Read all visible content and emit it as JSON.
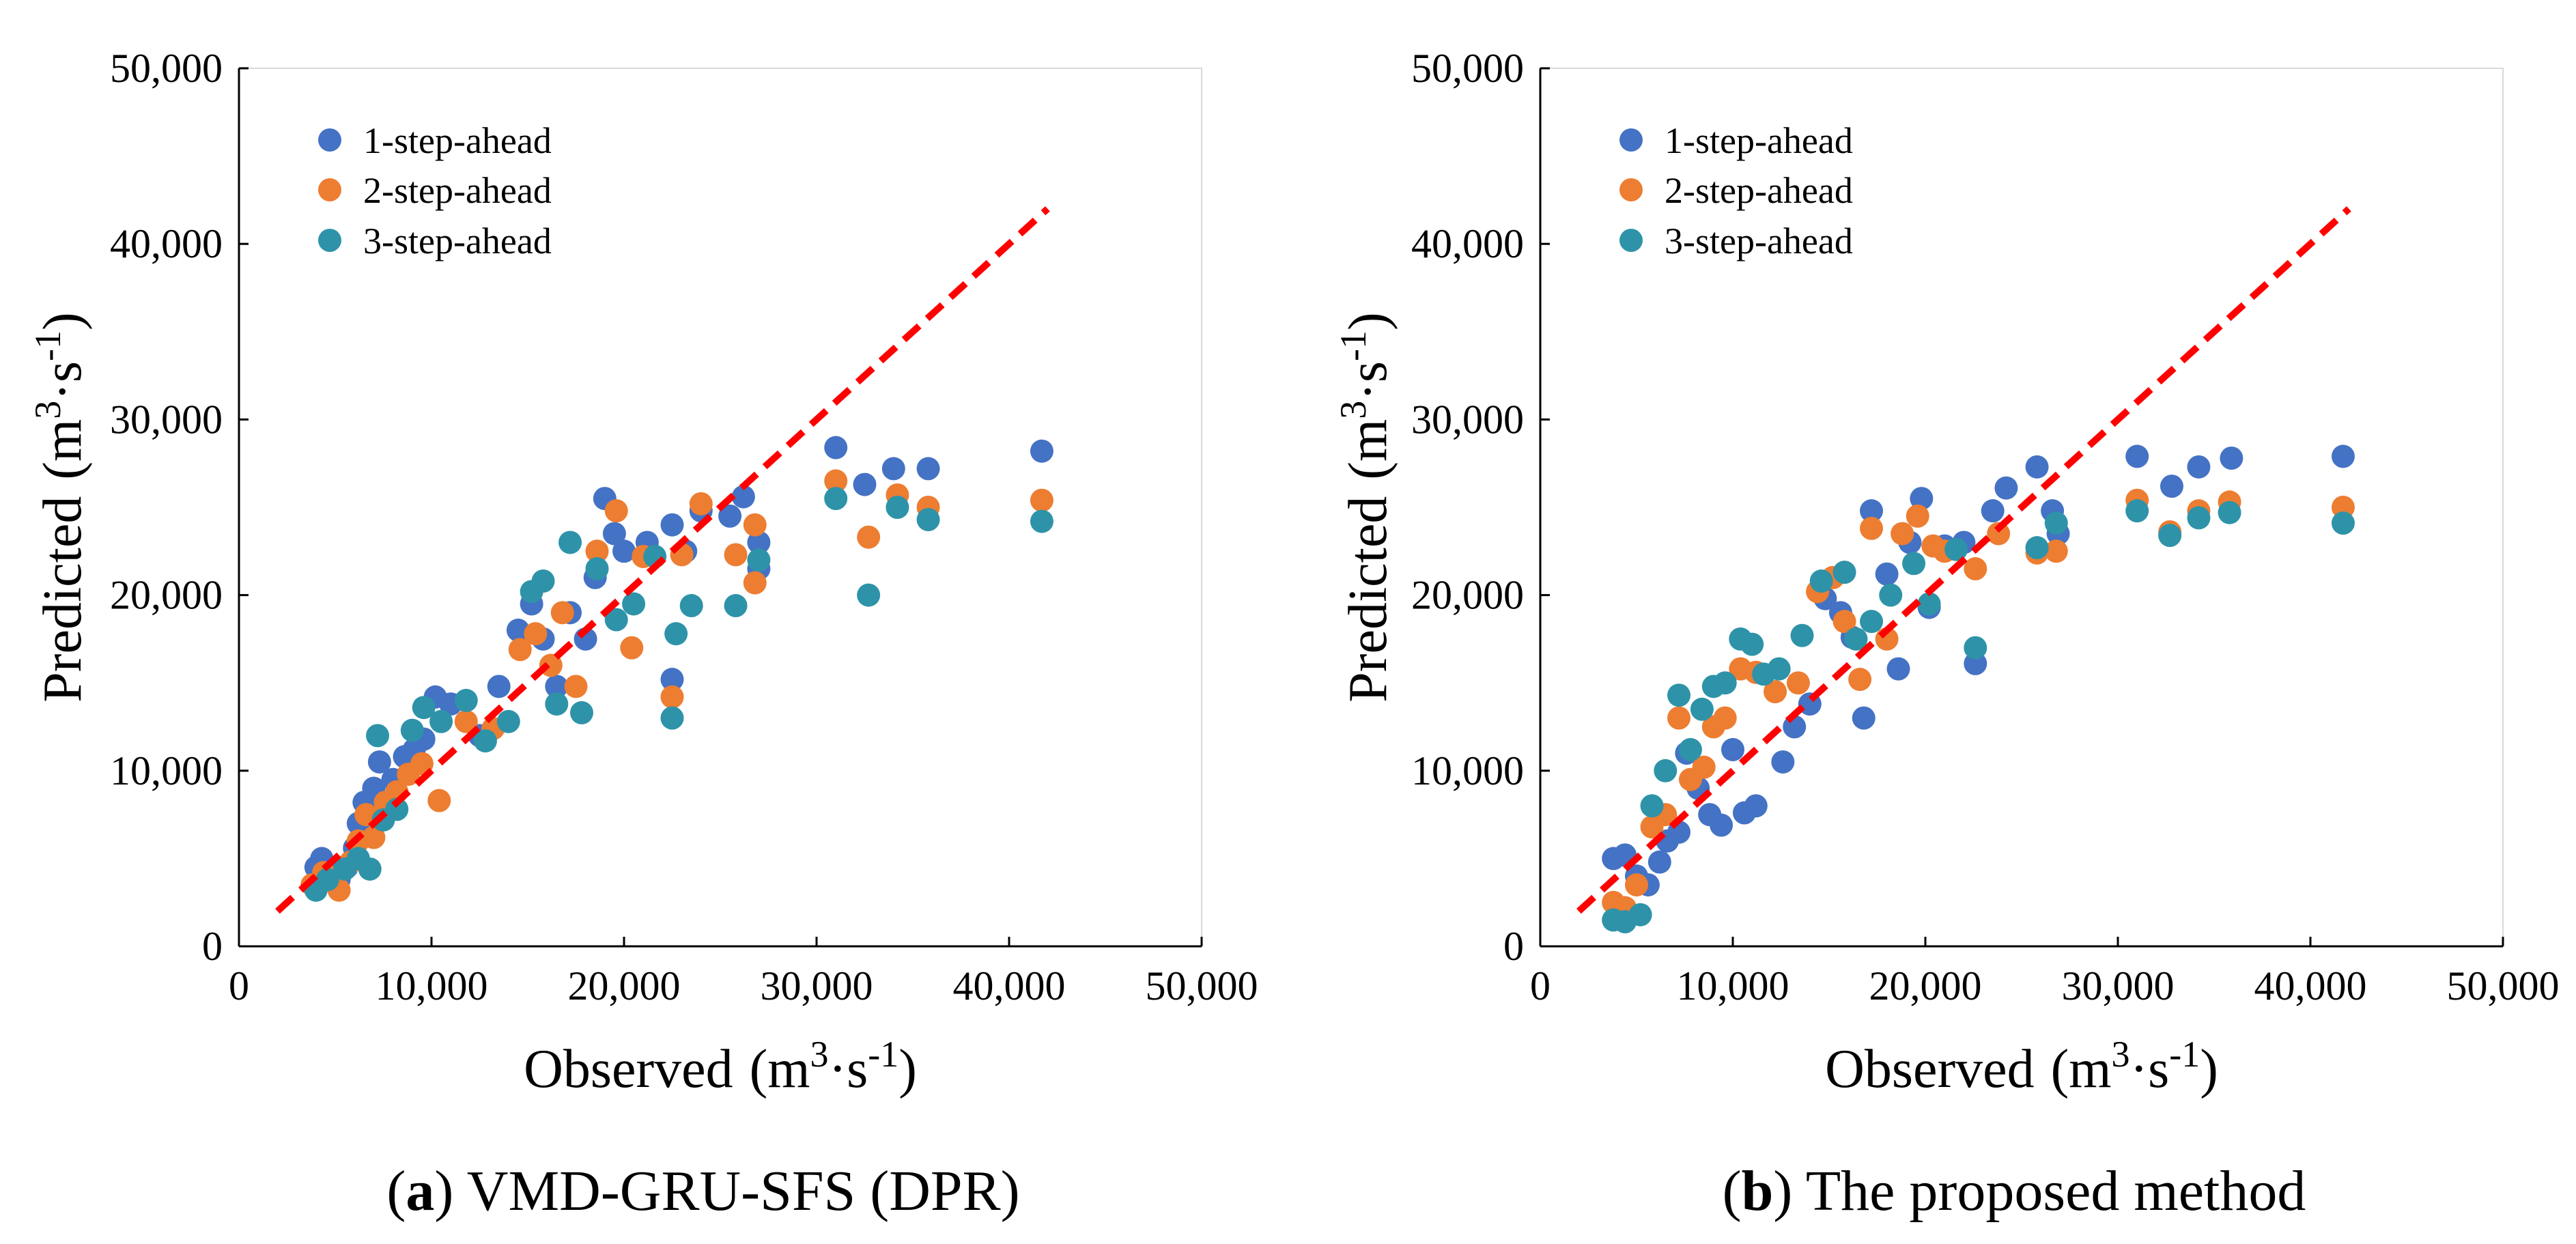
{
  "figure": {
    "marker_colors": {
      "1-step-ahead": "#4472C4",
      "2-step-ahead": "#ED7D31",
      "3-step-ahead": "#2E93A8"
    },
    "identity_line_color": "#FF0000"
  },
  "chart_data": [
    {
      "type": "scatter",
      "panel": "a",
      "caption_label": "a",
      "caption_text": " VMD-GRU-SFS (DPR)",
      "xlabel_text": "Observed",
      "ylabel_text": "Predicted",
      "unit_base": "m",
      "unit_sup1": "3",
      "unit_mid": "·s",
      "unit_sup2": "-1",
      "xlim": [
        0,
        50000
      ],
      "ylim": [
        0,
        50000
      ],
      "xticks": [
        0,
        10000,
        20000,
        30000,
        40000,
        50000
      ],
      "yticks": [
        0,
        10000,
        20000,
        30000,
        40000,
        50000
      ],
      "xtick_labels": [
        "0",
        "10,000",
        "20,000",
        "30,000",
        "40,000",
        "50,000"
      ],
      "ytick_labels": [
        "0",
        "10,000",
        "20,000",
        "30,000",
        "40,000",
        "50,000"
      ],
      "legend_position": "top-left",
      "reference_line": {
        "x": [
          2000,
          42000
        ],
        "y": [
          2000,
          42000
        ],
        "style": "dashed"
      },
      "series": [
        {
          "name": "1-step-ahead",
          "points": [
            [
              4000,
              4500
            ],
            [
              4300,
              5000
            ],
            [
              4800,
              4200
            ],
            [
              5200,
              3800
            ],
            [
              5600,
              4500
            ],
            [
              6000,
              5600
            ],
            [
              6200,
              7000
            ],
            [
              6500,
              8200
            ],
            [
              7000,
              9000
            ],
            [
              7300,
              10500
            ],
            [
              8000,
              9500
            ],
            [
              8600,
              10800
            ],
            [
              9100,
              11200
            ],
            [
              9600,
              11800
            ],
            [
              10200,
              14200
            ],
            [
              11000,
              13800
            ],
            [
              12500,
              12000
            ],
            [
              13500,
              14800
            ],
            [
              14500,
              18000
            ],
            [
              15200,
              19500
            ],
            [
              15800,
              17500
            ],
            [
              16500,
              14800
            ],
            [
              17200,
              19000
            ],
            [
              18000,
              17500
            ],
            [
              18500,
              21000
            ],
            [
              19000,
              25500
            ],
            [
              19500,
              23500
            ],
            [
              20000,
              22500
            ],
            [
              21200,
              23000
            ],
            [
              22500,
              24000
            ],
            [
              23200,
              22500
            ],
            [
              24000,
              24800
            ],
            [
              25500,
              24500
            ],
            [
              26200,
              25600
            ],
            [
              27000,
              23000
            ],
            [
              27000,
              21500
            ],
            [
              22500,
              15200
            ],
            [
              31000,
              28400
            ],
            [
              32500,
              26300
            ],
            [
              34000,
              27200
            ],
            [
              35800,
              27200
            ],
            [
              41700,
              28200
            ]
          ]
        },
        {
          "name": "2-step-ahead",
          "points": [
            [
              3800,
              3500
            ],
            [
              4400,
              4200
            ],
            [
              5200,
              3200
            ],
            [
              5800,
              4800
            ],
            [
              6200,
              6000
            ],
            [
              6600,
              7500
            ],
            [
              7000,
              6200
            ],
            [
              7600,
              8200
            ],
            [
              8200,
              8800
            ],
            [
              8800,
              9800
            ],
            [
              9500,
              10400
            ],
            [
              10400,
              8300
            ],
            [
              11800,
              12800
            ],
            [
              13200,
              12400
            ],
            [
              14600,
              16900
            ],
            [
              15400,
              17800
            ],
            [
              16200,
              16000
            ],
            [
              16800,
              19000
            ],
            [
              17500,
              14800
            ],
            [
              18600,
              22500
            ],
            [
              19600,
              24800
            ],
            [
              20400,
              17000
            ],
            [
              21000,
              22200
            ],
            [
              22500,
              14200
            ],
            [
              23000,
              22300
            ],
            [
              24000,
              25200
            ],
            [
              25800,
              22300
            ],
            [
              26800,
              20700
            ],
            [
              26800,
              24000
            ],
            [
              31000,
              26500
            ],
            [
              32700,
              23300
            ],
            [
              34200,
              25700
            ],
            [
              35800,
              25000
            ],
            [
              41700,
              25400
            ]
          ]
        },
        {
          "name": "3-step-ahead",
          "points": [
            [
              4000,
              3200
            ],
            [
              4600,
              3800
            ],
            [
              5500,
              4400
            ],
            [
              6200,
              5000
            ],
            [
              6800,
              4400
            ],
            [
              7200,
              12000
            ],
            [
              7500,
              7200
            ],
            [
              8200,
              7800
            ],
            [
              9000,
              12300
            ],
            [
              9600,
              13600
            ],
            [
              10500,
              12800
            ],
            [
              11800,
              14000
            ],
            [
              12800,
              11700
            ],
            [
              14000,
              12800
            ],
            [
              15200,
              20200
            ],
            [
              15800,
              20800
            ],
            [
              16500,
              13800
            ],
            [
              17200,
              23000
            ],
            [
              17800,
              13300
            ],
            [
              18600,
              21500
            ],
            [
              19600,
              18600
            ],
            [
              20500,
              19500
            ],
            [
              21600,
              22200
            ],
            [
              22500,
              13000
            ],
            [
              22700,
              17800
            ],
            [
              23500,
              19400
            ],
            [
              25800,
              19400
            ],
            [
              27000,
              22000
            ],
            [
              31000,
              25500
            ],
            [
              32700,
              20000
            ],
            [
              34200,
              25000
            ],
            [
              35800,
              24300
            ],
            [
              41700,
              24200
            ]
          ]
        }
      ]
    },
    {
      "type": "scatter",
      "panel": "b",
      "caption_label": "b",
      "caption_text": " The proposed method",
      "xlabel_text": "Observed",
      "ylabel_text": "Predicted",
      "unit_base": "m",
      "unit_sup1": "3",
      "unit_mid": "·s",
      "unit_sup2": "-1",
      "xlim": [
        0,
        50000
      ],
      "ylim": [
        0,
        50000
      ],
      "xticks": [
        0,
        10000,
        20000,
        30000,
        40000,
        50000
      ],
      "yticks": [
        0,
        10000,
        20000,
        30000,
        40000,
        50000
      ],
      "xtick_labels": [
        "0",
        "10,000",
        "20,000",
        "30,000",
        "40,000",
        "50,000"
      ],
      "ytick_labels": [
        "0",
        "10,000",
        "20,000",
        "30,000",
        "40,000",
        "50,000"
      ],
      "legend_position": "top-left",
      "reference_line": {
        "x": [
          2000,
          42000
        ],
        "y": [
          2000,
          42000
        ],
        "style": "dashed"
      },
      "series": [
        {
          "name": "1-step-ahead",
          "points": [
            [
              3800,
              5000
            ],
            [
              4400,
              5200
            ],
            [
              5000,
              4000
            ],
            [
              5600,
              3500
            ],
            [
              6200,
              4800
            ],
            [
              6600,
              6000
            ],
            [
              7200,
              6500
            ],
            [
              7600,
              11000
            ],
            [
              8200,
              9000
            ],
            [
              8800,
              7500
            ],
            [
              9400,
              6900
            ],
            [
              10000,
              11200
            ],
            [
              10600,
              7600
            ],
            [
              11200,
              8000
            ],
            [
              12600,
              10500
            ],
            [
              13200,
              12500
            ],
            [
              14000,
              13800
            ],
            [
              14800,
              19800
            ],
            [
              15600,
              19000
            ],
            [
              16200,
              17600
            ],
            [
              16800,
              13000
            ],
            [
              17200,
              24800
            ],
            [
              18000,
              21200
            ],
            [
              18600,
              15800
            ],
            [
              19200,
              23000
            ],
            [
              19800,
              25500
            ],
            [
              20200,
              19300
            ],
            [
              21000,
              22800
            ],
            [
              22000,
              23000
            ],
            [
              22600,
              16100
            ],
            [
              23500,
              24800
            ],
            [
              24200,
              26100
            ],
            [
              25800,
              27300
            ],
            [
              26600,
              24800
            ],
            [
              26900,
              23500
            ],
            [
              31000,
              27900
            ],
            [
              32800,
              26200
            ],
            [
              34200,
              27300
            ],
            [
              35900,
              27800
            ],
            [
              41700,
              27900
            ]
          ]
        },
        {
          "name": "2-step-ahead",
          "points": [
            [
              3800,
              2500
            ],
            [
              4400,
              2200
            ],
            [
              5000,
              3500
            ],
            [
              5800,
              6800
            ],
            [
              6500,
              7500
            ],
            [
              7200,
              13000
            ],
            [
              7800,
              9500
            ],
            [
              8500,
              10200
            ],
            [
              9000,
              12500
            ],
            [
              9600,
              13000
            ],
            [
              10400,
              15800
            ],
            [
              11200,
              15600
            ],
            [
              12200,
              14500
            ],
            [
              13400,
              15000
            ],
            [
              14400,
              20200
            ],
            [
              15200,
              21000
            ],
            [
              15800,
              18500
            ],
            [
              16600,
              15200
            ],
            [
              17200,
              23800
            ],
            [
              18000,
              17500
            ],
            [
              18800,
              23500
            ],
            [
              19600,
              24500
            ],
            [
              20400,
              22800
            ],
            [
              21000,
              22500
            ],
            [
              22600,
              21500
            ],
            [
              23800,
              23500
            ],
            [
              25800,
              22400
            ],
            [
              26800,
              22500
            ],
            [
              31000,
              25400
            ],
            [
              32700,
              23600
            ],
            [
              34200,
              24800
            ],
            [
              35800,
              25300
            ],
            [
              41700,
              25000
            ]
          ]
        },
        {
          "name": "3-step-ahead",
          "points": [
            [
              3800,
              1500
            ],
            [
              4400,
              1400
            ],
            [
              5200,
              1800
            ],
            [
              5800,
              8000
            ],
            [
              6500,
              10000
            ],
            [
              7200,
              14300
            ],
            [
              7800,
              11200
            ],
            [
              8400,
              13500
            ],
            [
              9000,
              14800
            ],
            [
              9600,
              15000
            ],
            [
              10400,
              17500
            ],
            [
              11000,
              17200
            ],
            [
              11600,
              15500
            ],
            [
              12400,
              15800
            ],
            [
              13600,
              17700
            ],
            [
              14600,
              20800
            ],
            [
              15800,
              21300
            ],
            [
              16400,
              17500
            ],
            [
              17200,
              18500
            ],
            [
              18200,
              20000
            ],
            [
              19400,
              21800
            ],
            [
              20200,
              19500
            ],
            [
              21600,
              22600
            ],
            [
              22600,
              17000
            ],
            [
              25800,
              22700
            ],
            [
              26800,
              24100
            ],
            [
              31000,
              24800
            ],
            [
              32700,
              23400
            ],
            [
              34200,
              24400
            ],
            [
              35800,
              24700
            ],
            [
              41700,
              24100
            ]
          ]
        }
      ]
    }
  ]
}
